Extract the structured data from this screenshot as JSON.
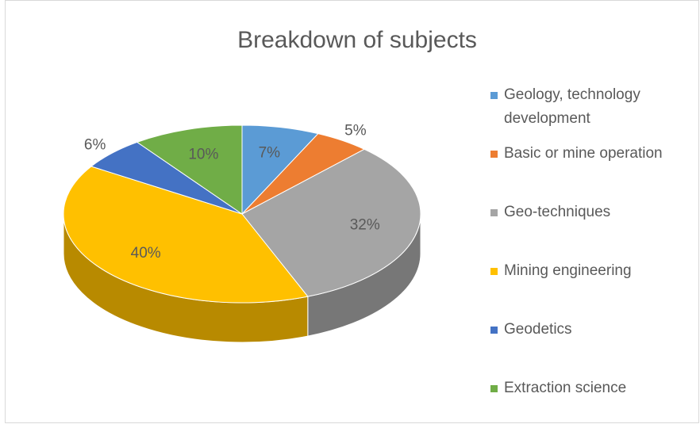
{
  "chart_data": {
    "type": "pie3d",
    "title": "Breakdown of subjects",
    "categories": [
      "Geology, technology development",
      "Basic or mine operation",
      "Geo-techniques",
      "Mining engineering",
      "Geodetics",
      "Extraction science"
    ],
    "values": [
      7,
      5,
      32,
      40,
      6,
      10
    ],
    "value_labels": [
      "7%",
      "5%",
      "32%",
      "40%",
      "6%",
      "10%"
    ],
    "colors": [
      "#5b9bd5",
      "#ed7d31",
      "#a5a5a5",
      "#ffc000",
      "#4472c4",
      "#70ad47"
    ],
    "legend": "right"
  }
}
